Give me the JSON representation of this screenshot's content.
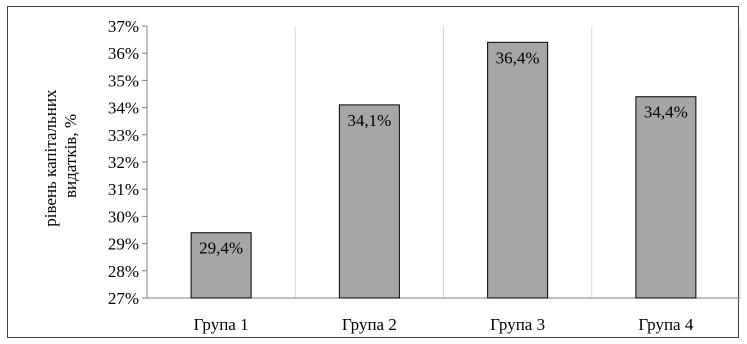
{
  "chart_data": {
    "type": "bar",
    "categories": [
      "Група 1",
      "Група 2",
      "Група 3",
      "Група 4"
    ],
    "values": [
      29.4,
      34.1,
      36.4,
      34.4
    ],
    "data_labels": [
      "29,4%",
      "34,1%",
      "36,4%",
      "34,4%"
    ],
    "ylabel_lines": [
      "рівень капітальних",
      "видатків, %"
    ],
    "ylim": [
      27,
      37
    ],
    "y_ticks": [
      27,
      28,
      29,
      30,
      31,
      32,
      33,
      34,
      35,
      36,
      37
    ],
    "y_tick_labels": [
      "27%",
      "28%",
      "29%",
      "30%",
      "31%",
      "32%",
      "33%",
      "34%",
      "35%",
      "36%",
      "37%"
    ],
    "grid": "vertical",
    "legend": "none",
    "colors": {
      "bar_fill": "#a6a6a6",
      "bar_stroke": "#000000",
      "grid": "#d9d9d9",
      "axis": "#808080"
    }
  }
}
